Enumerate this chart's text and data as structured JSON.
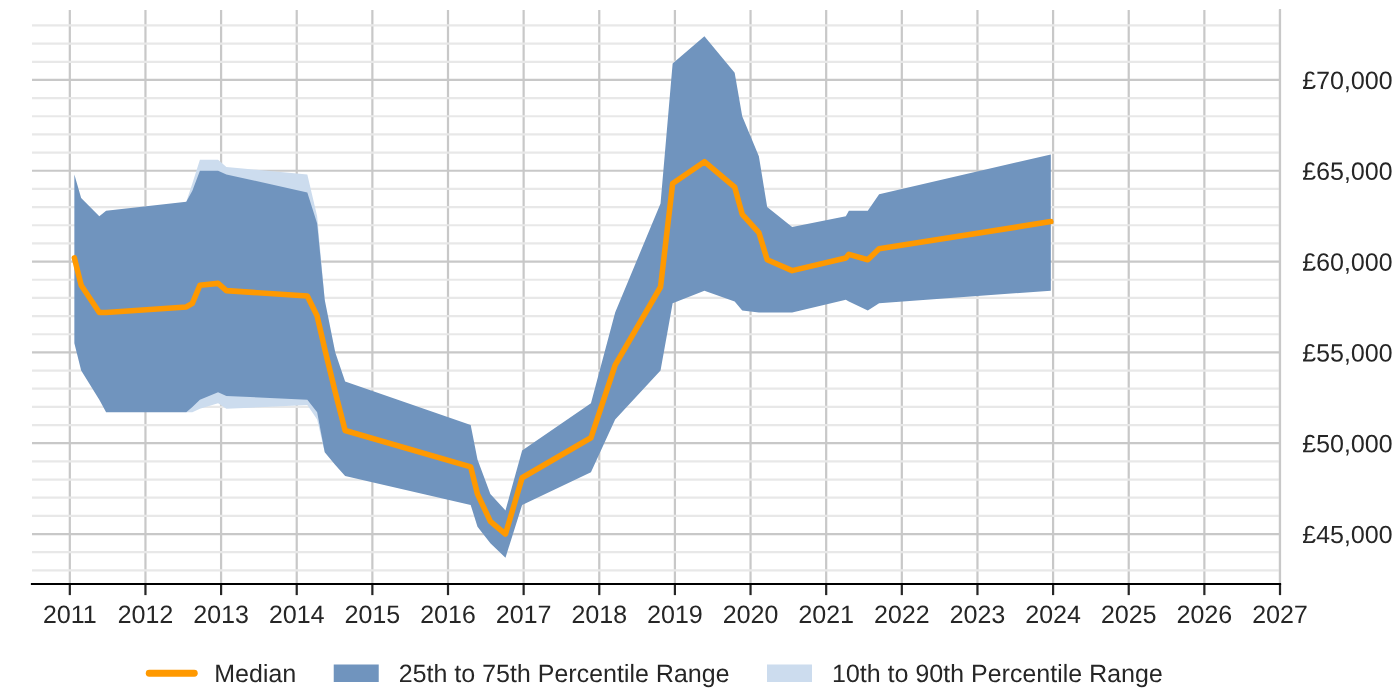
{
  "chart_data": {
    "type": "line",
    "xlim": [
      2010.5,
      2027
    ],
    "xticks": [
      2011,
      2012,
      2013,
      2014,
      2015,
      2016,
      2017,
      2018,
      2019,
      2020,
      2021,
      2022,
      2023,
      2024,
      2025,
      2026,
      2027
    ],
    "ylim": [
      42250,
      73850
    ],
    "yticks": [
      {
        "value": 43000,
        "label": null
      },
      {
        "value": 44000,
        "label": null
      },
      {
        "value": 45000,
        "label": "£45,000"
      },
      {
        "value": 46000,
        "label": null
      },
      {
        "value": 47000,
        "label": null
      },
      {
        "value": 48000,
        "label": null
      },
      {
        "value": 49000,
        "label": null
      },
      {
        "value": 50000,
        "label": "£50,000"
      },
      {
        "value": 51000,
        "label": null
      },
      {
        "value": 52000,
        "label": null
      },
      {
        "value": 53000,
        "label": null
      },
      {
        "value": 54000,
        "label": null
      },
      {
        "value": 55000,
        "label": "£55,000"
      },
      {
        "value": 56000,
        "label": null
      },
      {
        "value": 57000,
        "label": null
      },
      {
        "value": 58000,
        "label": null
      },
      {
        "value": 59000,
        "label": null
      },
      {
        "value": 60000,
        "label": "£60,000"
      },
      {
        "value": 61000,
        "label": null
      },
      {
        "value": 62000,
        "label": null
      },
      {
        "value": 63000,
        "label": null
      },
      {
        "value": 64000,
        "label": null
      },
      {
        "value": 65000,
        "label": "£65,000"
      },
      {
        "value": 66000,
        "label": null
      },
      {
        "value": 67000,
        "label": null
      },
      {
        "value": 68000,
        "label": null
      },
      {
        "value": 69000,
        "label": null
      },
      {
        "value": 70000,
        "label": "£70,000"
      },
      {
        "value": 71000,
        "label": null
      },
      {
        "value": 72000,
        "label": null
      },
      {
        "value": 73000,
        "label": null
      }
    ],
    "grid": true,
    "legend": "bottom",
    "x": [
      2011.06,
      2011.15,
      2011.39,
      2011.48,
      2012.54,
      2012.62,
      2012.72,
      2012.96,
      2013.07,
      2014.14,
      2014.27,
      2014.37,
      2014.51,
      2014.64,
      2016.3,
      2016.39,
      2016.56,
      2016.76,
      2016.98,
      2017.89,
      2018.21,
      2018.81,
      2018.97,
      2019.39,
      2019.79,
      2019.89,
      2020.11,
      2020.22,
      2020.55,
      2021.26,
      2021.3,
      2021.55,
      2021.7,
      2023.97
    ],
    "series": [
      {
        "name": "Median",
        "color": "#ff9900",
        "values": [
          60200,
          58700,
          57200,
          57200,
          57500,
          57700,
          58700,
          58800,
          58400,
          58100,
          57000,
          55200,
          52800,
          50700,
          48700,
          47200,
          45700,
          45000,
          48100,
          50300,
          54300,
          58600,
          64300,
          65500,
          64100,
          62600,
          61600,
          60100,
          59500,
          60200,
          60400,
          60100,
          60700,
          62200
        ]
      },
      {
        "name": "25th to 75th Percentile Range",
        "color": "#7094be",
        "values": [
          null,
          null,
          null,
          null,
          null,
          null,
          null,
          null,
          null,
          null,
          null,
          null,
          null,
          null,
          null,
          null,
          null,
          null,
          null,
          null,
          null,
          null,
          null,
          null,
          null,
          null,
          null,
          null,
          null,
          null,
          null,
          null,
          null,
          null
        ],
        "upper": [
          64800,
          63500,
          62500,
          62800,
          63300,
          63900,
          65000,
          65000,
          64800,
          63800,
          62100,
          57900,
          55000,
          53400,
          51000,
          49100,
          47200,
          46300,
          49600,
          52200,
          57200,
          63200,
          70900,
          72400,
          70400,
          68000,
          65800,
          63000,
          61900,
          62500,
          62800,
          62800,
          63700,
          65900
        ],
        "lower": [
          55500,
          54000,
          52400,
          51700,
          51700,
          52000,
          52400,
          52800,
          52600,
          52400,
          51700,
          49500,
          48800,
          48200,
          46600,
          45400,
          44500,
          43700,
          46600,
          48400,
          51300,
          54000,
          57700,
          58400,
          57800,
          57300,
          57200,
          57200,
          57200,
          57900,
          57800,
          57300,
          57700,
          58400
        ]
      },
      {
        "name": "10th to 90th Percentile Range",
        "color": "#ccdcee",
        "values": [
          null,
          null,
          null,
          null,
          null,
          null,
          null,
          null,
          null,
          null,
          null,
          null,
          null,
          null,
          null,
          null,
          null,
          null,
          null,
          null,
          null,
          null,
          null,
          null,
          null,
          null,
          null,
          null,
          null,
          null,
          null,
          null,
          null,
          null
        ],
        "upper": [
          null,
          null,
          null,
          null,
          63300,
          64300,
          65600,
          65600,
          65200,
          64800,
          62500,
          57900,
          null,
          null,
          null,
          null,
          null,
          null,
          null,
          null,
          null,
          null,
          null,
          null,
          null,
          null,
          null,
          null,
          null,
          null,
          null,
          null,
          null,
          null
        ],
        "lower": [
          null,
          null,
          null,
          null,
          51700,
          51700,
          51900,
          52200,
          51900,
          52100,
          51300,
          49500,
          null,
          null,
          null,
          null,
          null,
          null,
          null,
          null,
          null,
          null,
          null,
          null,
          null,
          null,
          null,
          null,
          null,
          null,
          null,
          null,
          null,
          null
        ]
      }
    ]
  }
}
